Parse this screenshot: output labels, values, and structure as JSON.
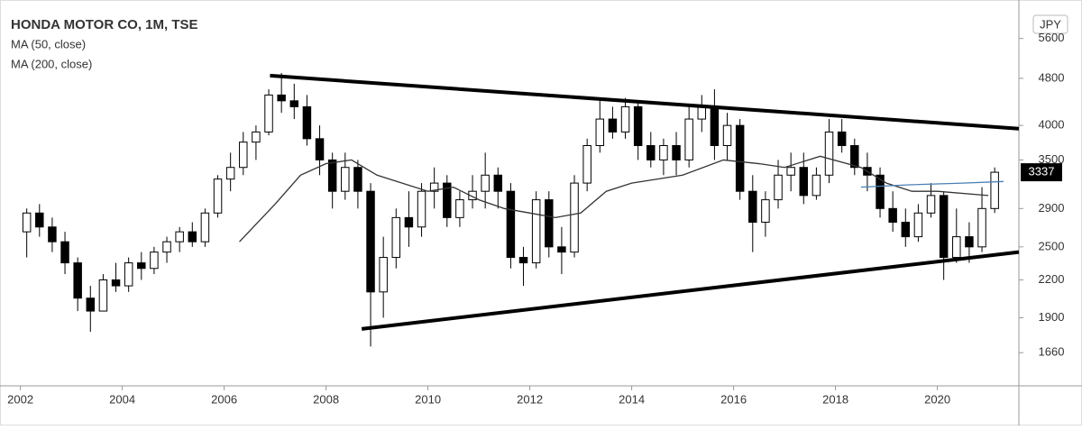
{
  "chart_data": {
    "type": "candlestick",
    "title": "HONDA MOTOR CO, 1M, TSE",
    "currency": "JPY",
    "log": true,
    "up_color": "#ffffff",
    "down_color": "#000000",
    "xlim": [
      2001.6,
      2021.6
    ],
    "xticks": [
      2002,
      2004,
      2006,
      2008,
      2010,
      2012,
      2014,
      2016,
      2018,
      2020
    ],
    "ylim": [
      1460,
      6500
    ],
    "yticks": [
      1660,
      1900,
      2200,
      2500,
      2900,
      3500,
      4000,
      4800,
      5600
    ],
    "x": [
      2002.125,
      2002.375,
      2002.625,
      2002.875,
      2003.125,
      2003.375,
      2003.625,
      2003.875,
      2004.125,
      2004.375,
      2004.625,
      2004.875,
      2005.125,
      2005.375,
      2005.625,
      2005.875,
      2006.125,
      2006.375,
      2006.625,
      2006.875,
      2007.125,
      2007.375,
      2007.625,
      2007.875,
      2008.125,
      2008.375,
      2008.625,
      2008.875,
      2009.125,
      2009.375,
      2009.625,
      2009.875,
      2010.125,
      2010.375,
      2010.625,
      2010.875,
      2011.125,
      2011.375,
      2011.625,
      2011.875,
      2012.125,
      2012.375,
      2012.625,
      2012.875,
      2013.125,
      2013.375,
      2013.625,
      2013.875,
      2014.125,
      2014.375,
      2014.625,
      2014.875,
      2015.125,
      2015.375,
      2015.625,
      2015.875,
      2016.125,
      2016.375,
      2016.625,
      2016.875,
      2017.125,
      2017.375,
      2017.625,
      2017.875,
      2018.125,
      2018.375,
      2018.625,
      2018.875,
      2019.125,
      2019.375,
      2019.625,
      2019.875,
      2020.125,
      2020.375,
      2020.625,
      2020.875,
      2021.125
    ],
    "candles": [
      [
        2650,
        2900,
        2400,
        2850
      ],
      [
        2850,
        2950,
        2600,
        2700
      ],
      [
        2700,
        2800,
        2450,
        2550
      ],
      [
        2550,
        2650,
        2250,
        2350
      ],
      [
        2350,
        2400,
        1950,
        2050
      ],
      [
        2050,
        2150,
        1800,
        1950
      ],
      [
        1950,
        2250,
        1950,
        2200
      ],
      [
        2200,
        2350,
        2100,
        2150
      ],
      [
        2150,
        2400,
        2100,
        2350
      ],
      [
        2350,
        2450,
        2200,
        2300
      ],
      [
        2300,
        2500,
        2250,
        2450
      ],
      [
        2450,
        2600,
        2350,
        2550
      ],
      [
        2550,
        2700,
        2450,
        2650
      ],
      [
        2650,
        2750,
        2500,
        2550
      ],
      [
        2550,
        2900,
        2500,
        2850
      ],
      [
        2850,
        3300,
        2800,
        3250
      ],
      [
        3250,
        3600,
        3100,
        3400
      ],
      [
        3400,
        3900,
        3300,
        3750
      ],
      [
        3750,
        4000,
        3500,
        3900
      ],
      [
        3900,
        4600,
        3850,
        4500
      ],
      [
        4500,
        4900,
        4200,
        4400
      ],
      [
        4400,
        4700,
        4100,
        4300
      ],
      [
        4300,
        4500,
        3700,
        3800
      ],
      [
        3800,
        4000,
        3300,
        3500
      ],
      [
        3500,
        3600,
        2900,
        3100
      ],
      [
        3100,
        3600,
        3000,
        3400
      ],
      [
        3400,
        3500,
        2900,
        3100
      ],
      [
        3100,
        3200,
        1700,
        2100
      ],
      [
        2100,
        2600,
        1900,
        2400
      ],
      [
        2400,
        2900,
        2300,
        2800
      ],
      [
        2800,
        3100,
        2500,
        2700
      ],
      [
        2700,
        3200,
        2600,
        3100
      ],
      [
        3100,
        3400,
        2900,
        3200
      ],
      [
        3200,
        3300,
        2700,
        2800
      ],
      [
        2800,
        3100,
        2700,
        3000
      ],
      [
        3000,
        3300,
        2900,
        3100
      ],
      [
        3100,
        3600,
        2900,
        3300
      ],
      [
        3300,
        3400,
        2900,
        3100
      ],
      [
        3100,
        3200,
        2300,
        2400
      ],
      [
        2400,
        2500,
        2150,
        2350
      ],
      [
        2350,
        3100,
        2300,
        3000
      ],
      [
        3000,
        3100,
        2400,
        2500
      ],
      [
        2500,
        2700,
        2250,
        2450
      ],
      [
        2450,
        3300,
        2400,
        3200
      ],
      [
        3200,
        3800,
        3100,
        3700
      ],
      [
        3700,
        4400,
        3600,
        4100
      ],
      [
        4100,
        4300,
        3800,
        3900
      ],
      [
        3900,
        4450,
        3800,
        4300
      ],
      [
        4300,
        4400,
        3500,
        3700
      ],
      [
        3700,
        3900,
        3400,
        3500
      ],
      [
        3500,
        3800,
        3300,
        3700
      ],
      [
        3700,
        3900,
        3300,
        3500
      ],
      [
        3500,
        4300,
        3400,
        4100
      ],
      [
        4100,
        4500,
        3900,
        4300
      ],
      [
        4300,
        4600,
        3500,
        3700
      ],
      [
        3700,
        4200,
        3500,
        4000
      ],
      [
        4000,
        4100,
        3000,
        3100
      ],
      [
        3100,
        3300,
        2450,
        2750
      ],
      [
        2750,
        3100,
        2600,
        3000
      ],
      [
        3000,
        3500,
        2900,
        3300
      ],
      [
        3300,
        3600,
        3100,
        3400
      ],
      [
        3400,
        3600,
        2950,
        3050
      ],
      [
        3050,
        3400,
        3000,
        3300
      ],
      [
        3300,
        4100,
        3200,
        3900
      ],
      [
        3900,
        4100,
        3600,
        3700
      ],
      [
        3700,
        3800,
        3300,
        3400
      ],
      [
        3400,
        3600,
        3100,
        3300
      ],
      [
        3300,
        3400,
        2800,
        2900
      ],
      [
        2900,
        3100,
        2650,
        2750
      ],
      [
        2750,
        2900,
        2500,
        2600
      ],
      [
        2600,
        2950,
        2550,
        2850
      ],
      [
        2850,
        3200,
        2800,
        3050
      ],
      [
        3050,
        3100,
        2200,
        2400
      ],
      [
        2400,
        2900,
        2350,
        2600
      ],
      [
        2600,
        2750,
        2350,
        2500
      ],
      [
        2500,
        3150,
        2450,
        2900
      ],
      [
        2900,
        3400,
        2850,
        3337
      ]
    ],
    "series": [
      {
        "name": "MA (50, close)",
        "color": "#333333",
        "x": [
          2006.3,
          2007,
          2007.5,
          2008,
          2008.5,
          2009,
          2010,
          2010.5,
          2011,
          2011.5,
          2012,
          2012.5,
          2013,
          2013.5,
          2014,
          2015,
          2015.8,
          2016.5,
          2017,
          2017.7,
          2018.5,
          2019,
          2019.5,
          2020,
          2021
        ],
        "values": [
          2550,
          2950,
          3300,
          3450,
          3500,
          3300,
          3100,
          3150,
          3000,
          2900,
          2850,
          2800,
          2850,
          3100,
          3200,
          3300,
          3500,
          3450,
          3400,
          3550,
          3400,
          3200,
          3100,
          3100,
          3050
        ]
      },
      {
        "name": "MA (200, close)",
        "color": "#4a7fb5",
        "x": [
          2018.5,
          2019.5,
          2020.5,
          2021.3
        ],
        "values": [
          3150,
          3180,
          3200,
          3220
        ]
      }
    ],
    "trendlines": [
      {
        "x": [
          2006.9,
          2021.6
        ],
        "values": [
          4850,
          3950
        ]
      },
      {
        "x": [
          2008.7,
          2021.6
        ],
        "values": [
          1820,
          2450
        ]
      }
    ]
  }
}
